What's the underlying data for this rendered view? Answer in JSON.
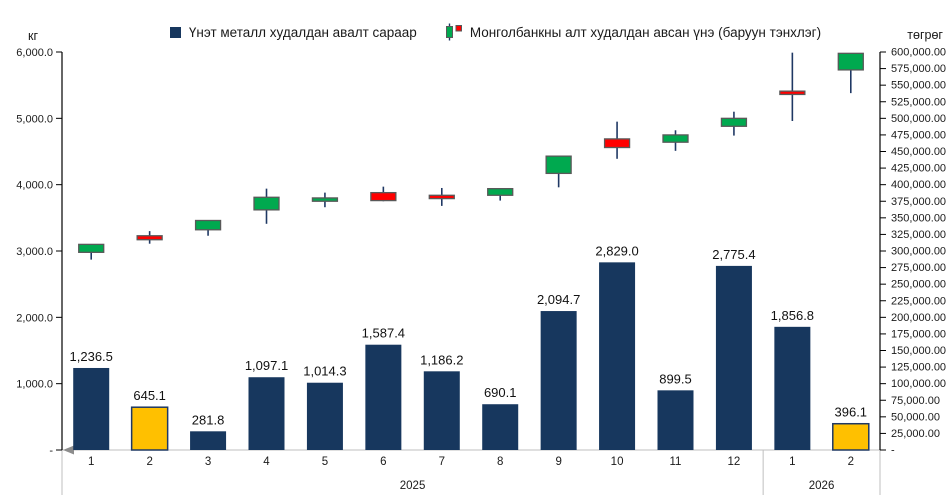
{
  "colors": {
    "bar_navy": "#17375E",
    "bar_gold": "#FFC000",
    "candle_up": "#00A94F",
    "candle_down": "#FF0000",
    "candle_border": "#595959",
    "wick": "#1F3864",
    "axis_line": "#000000",
    "band_line": "#BFBFBF",
    "text": "#1A1A1A",
    "arrow": "#8C8C8C"
  },
  "legend": {
    "bars": {
      "label": "Үнэт металл худалдан авалт сараар"
    },
    "candles": {
      "label": "Монголбанкны алт худалдан авсан үнэ (баруун тэнхлэг)"
    }
  },
  "chart_data": {
    "type": "combo: bar (left axis) + candlestick OHLC (right axis)",
    "categories": [
      "1",
      "2",
      "3",
      "4",
      "5",
      "6",
      "7",
      "8",
      "9",
      "10",
      "11",
      "12",
      "1",
      "2"
    ],
    "year_groups": [
      {
        "label": "2025",
        "months": 12
      },
      {
        "label": "2026",
        "months": 2
      }
    ],
    "left_axis": {
      "unit": "кг",
      "min": 0,
      "max": 6000,
      "step": 1000,
      "tick_labels": [
        "-",
        "1,000.0",
        "2,000.0",
        "3,000.0",
        "4,000.0",
        "5,000.0",
        "6,000.0"
      ]
    },
    "right_axis": {
      "unit": "төгрөг",
      "min": 0,
      "max": 600000,
      "step": 25000,
      "tick_labels": [
        "-",
        "25,000.00",
        "50,000.00",
        "75,000.00",
        "100,000.00",
        "125,000.00",
        "150,000.00",
        "175,000.00",
        "200,000.00",
        "225,000.00",
        "250,000.00",
        "275,000.00",
        "300,000.00",
        "325,000.00",
        "350,000.00",
        "375,000.00",
        "400,000.00",
        "425,000.00",
        "450,000.00",
        "475,000.00",
        "500,000.00",
        "525,000.00",
        "550,000.00",
        "575,000.00",
        "600,000.00"
      ]
    },
    "bars": {
      "name": "Үнэт металл худалдан авалт сараар",
      "axis": "left",
      "values": [
        1236.5,
        645.1,
        281.8,
        1097.1,
        1014.3,
        1587.4,
        1186.2,
        690.1,
        2094.7,
        2829.0,
        899.5,
        2775.4,
        1856.8,
        396.1
      ],
      "labels": [
        "1,236.5",
        "645.1",
        "281.8",
        "1,097.1",
        "1,014.3",
        "1,587.4",
        "1,186.2",
        "690.1",
        "2,094.7",
        "2,829.0",
        "899.5",
        "2,775.4",
        "1,856.8",
        "396.1"
      ],
      "colors": [
        "navy",
        "gold",
        "navy",
        "navy",
        "navy",
        "navy",
        "navy",
        "navy",
        "navy",
        "navy",
        "navy",
        "navy",
        "navy",
        "gold"
      ]
    },
    "candles": {
      "name": "Монголбанкны алт худалдан авсан үнэ (баруун тэнхлэг)",
      "axis": "right",
      "ohlc": [
        {
          "open": 298000,
          "high": 310000,
          "low": 287000,
          "close": 310000
        },
        {
          "open": 323000,
          "high": 330000,
          "low": 311000,
          "close": 317000
        },
        {
          "open": 332000,
          "high": 346000,
          "low": 323000,
          "close": 346000
        },
        {
          "open": 362000,
          "high": 394000,
          "low": 341000,
          "close": 381000
        },
        {
          "open": 375000,
          "high": 388000,
          "low": 366000,
          "close": 380000
        },
        {
          "open": 388000,
          "high": 397000,
          "low": 375000,
          "close": 376000
        },
        {
          "open": 384000,
          "high": 395000,
          "low": 368000,
          "close": 379000
        },
        {
          "open": 384000,
          "high": 394000,
          "low": 376000,
          "close": 394000
        },
        {
          "open": 417000,
          "high": 443000,
          "low": 396000,
          "close": 443000
        },
        {
          "open": 469000,
          "high": 495000,
          "low": 439000,
          "close": 456000
        },
        {
          "open": 464000,
          "high": 482000,
          "low": 451000,
          "close": 475000
        },
        {
          "open": 488000,
          "high": 510000,
          "low": 474000,
          "close": 500000
        },
        {
          "open": 541000,
          "high": 599000,
          "low": 496000,
          "close": 536000
        },
        {
          "open": 573000,
          "high": 598000,
          "low": 538000,
          "close": 598000
        }
      ]
    }
  }
}
